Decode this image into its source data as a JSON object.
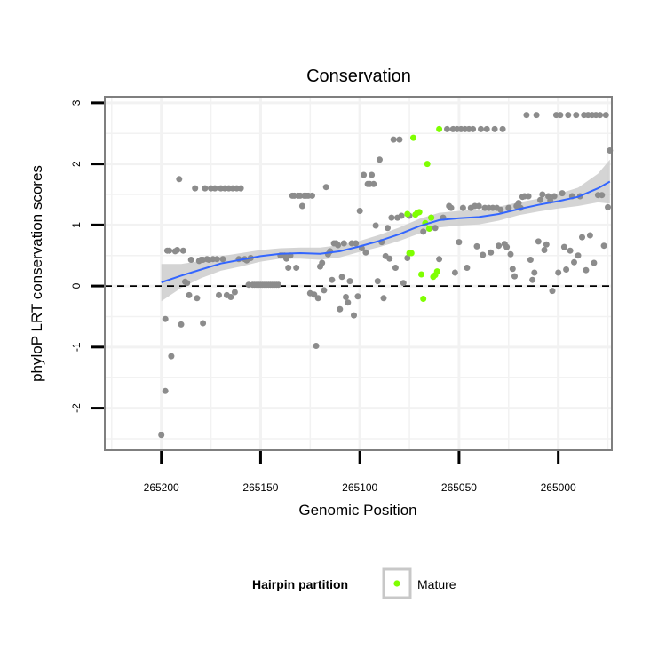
{
  "chart_data": {
    "type": "scatter",
    "title": "Conservation",
    "xlabel": "Genomic Position",
    "ylabel": "phyloP LRT conservation scores",
    "x_reversed": true,
    "xlim": [
      265228.5,
      264973
    ],
    "ylim": [
      -2.69,
      3.1
    ],
    "x_ticks": [
      265200,
      265150,
      265100,
      265050,
      265000
    ],
    "x_tick_labels": [
      "265200",
      "265150",
      "265100",
      "265050",
      "265000"
    ],
    "y_ticks": [
      -2,
      -1,
      0,
      1,
      2,
      3
    ],
    "y_tick_labels": [
      "-2",
      "-1",
      "0",
      "1",
      "2",
      "3"
    ],
    "grid": true,
    "reference_line": {
      "y": 0,
      "style": "dashed"
    },
    "legend": {
      "title": "Hairpin partition",
      "position": "bottom",
      "entries": [
        {
          "label": "Mature",
          "color": "#7fff00"
        }
      ]
    },
    "colors": {
      "points": "#8c8c8c",
      "mature": "#7fff00",
      "smooth": "#3366ff",
      "ribbon": "#cccccc",
      "panel_border": "#7f7f7f",
      "grid": "#f2f2f2"
    },
    "series": [
      {
        "role": "other",
        "points": [
          [
            265200,
            -2.44
          ],
          [
            265198,
            -1.72
          ],
          [
            265198,
            -0.54
          ],
          [
            265197,
            0.58
          ],
          [
            265196,
            0.58
          ],
          [
            265195,
            -1.15
          ],
          [
            265193,
            0.57
          ],
          [
            265192,
            0.59
          ],
          [
            265191,
            1.75
          ],
          [
            265190,
            -0.63
          ],
          [
            265189,
            0.58
          ],
          [
            265188,
            0.07
          ],
          [
            265187,
            0.05
          ],
          [
            265186,
            -0.15
          ],
          [
            265185,
            0.43
          ],
          [
            265183,
            1.6
          ],
          [
            265182,
            -0.2
          ],
          [
            265181,
            0.41
          ],
          [
            265180,
            0.43
          ],
          [
            265179,
            -0.61
          ],
          [
            265179,
            0.43
          ],
          [
            265178,
            1.6
          ],
          [
            265177,
            0.44
          ],
          [
            265176,
            0.43
          ],
          [
            265175,
            1.6
          ],
          [
            265174,
            0.44
          ],
          [
            265173,
            1.6
          ],
          [
            265172,
            0.44
          ],
          [
            265171,
            -0.15
          ],
          [
            265170,
            1.6
          ],
          [
            265169,
            0.44
          ],
          [
            265168,
            1.6
          ],
          [
            265167,
            -0.15
          ],
          [
            265166,
            1.6
          ],
          [
            265165,
            -0.18
          ],
          [
            265164,
            1.6
          ],
          [
            265163,
            -0.1
          ],
          [
            265162,
            1.6
          ],
          [
            265161,
            0.44
          ],
          [
            265160,
            1.6
          ],
          [
            265158,
            0.44
          ],
          [
            265157,
            0.42
          ],
          [
            265156,
            0.02
          ],
          [
            265155,
            0.46
          ],
          [
            265154,
            0.02
          ],
          [
            265153,
            0.02
          ],
          [
            265152,
            0.02
          ],
          [
            265151,
            0.02
          ],
          [
            265150,
            0.02
          ],
          [
            265149,
            0.02
          ],
          [
            265148,
            0.02
          ],
          [
            265147,
            0.02
          ],
          [
            265146,
            0.02
          ],
          [
            265145,
            0.02
          ],
          [
            265144,
            0.02
          ],
          [
            265143,
            0.02
          ],
          [
            265142,
            0.02
          ],
          [
            265141,
            0.02
          ],
          [
            265140,
            0.5
          ],
          [
            265139,
            0.5
          ],
          [
            265138,
            0.5
          ],
          [
            265137,
            0.45
          ],
          [
            265136,
            0.3
          ],
          [
            265135,
            0.5
          ],
          [
            265134,
            1.48
          ],
          [
            265133,
            1.48
          ],
          [
            265132,
            0.3
          ],
          [
            265131,
            1.48
          ],
          [
            265130,
            1.48
          ],
          [
            265129,
            1.31
          ],
          [
            265128,
            1.48
          ],
          [
            265127,
            1.48
          ],
          [
            265126,
            1.48
          ],
          [
            265125,
            -0.12
          ],
          [
            265124,
            1.48
          ],
          [
            265123,
            -0.14
          ],
          [
            265122,
            -0.98
          ],
          [
            265121,
            -0.2
          ],
          [
            265120,
            0.32
          ],
          [
            265119,
            0.38
          ],
          [
            265118,
            -0.07
          ],
          [
            265117,
            1.62
          ],
          [
            265116,
            0.52
          ],
          [
            265115,
            0.57
          ],
          [
            265114,
            0.1
          ],
          [
            265113,
            0.7
          ],
          [
            265112,
            0.7
          ],
          [
            265111,
            0.67
          ],
          [
            265110,
            -0.38
          ],
          [
            265109,
            0.15
          ],
          [
            265108,
            0.7
          ],
          [
            265107,
            -0.18
          ],
          [
            265106,
            -0.27
          ],
          [
            265105,
            0.08
          ],
          [
            265104,
            0.7
          ],
          [
            265103,
            -0.48
          ],
          [
            265102,
            0.7
          ],
          [
            265101,
            -0.17
          ],
          [
            265100,
            1.23
          ],
          [
            265099,
            0.62
          ],
          [
            265098,
            1.82
          ],
          [
            265097,
            0.55
          ],
          [
            265096,
            1.67
          ],
          [
            265095,
            1.67
          ],
          [
            265094,
            1.82
          ],
          [
            265093,
            1.67
          ],
          [
            265092,
            0.99
          ],
          [
            265091,
            0.08
          ],
          [
            265090,
            2.07
          ],
          [
            265089,
            0.72
          ],
          [
            265088,
            -0.2
          ],
          [
            265087,
            0.49
          ],
          [
            265086,
            0.95
          ],
          [
            265085,
            0.45
          ],
          [
            265084,
            1.12
          ],
          [
            265083,
            2.4
          ],
          [
            265082,
            0.3
          ],
          [
            265081,
            1.12
          ],
          [
            265080,
            2.4
          ],
          [
            265079,
            1.15
          ],
          [
            265078,
            0.05
          ],
          [
            265076,
            0.46
          ],
          [
            265075,
            1.15
          ],
          [
            265068,
            0.89
          ],
          [
            265064,
            1.12
          ],
          [
            265062,
            0.95
          ],
          [
            265060,
            0.44
          ],
          [
            265058,
            1.12
          ],
          [
            265056,
            2.57
          ],
          [
            265055,
            1.31
          ],
          [
            265054,
            1.28
          ],
          [
            265053,
            2.57
          ],
          [
            265052,
            0.22
          ],
          [
            265051,
            2.57
          ],
          [
            265050,
            0.72
          ],
          [
            265049,
            2.57
          ],
          [
            265048,
            1.28
          ],
          [
            265047,
            2.57
          ],
          [
            265046,
            0.3
          ],
          [
            265045,
            2.57
          ],
          [
            265044,
            1.28
          ],
          [
            265043,
            2.57
          ],
          [
            265042,
            1.31
          ],
          [
            265041,
            0.65
          ],
          [
            265040,
            1.31
          ],
          [
            265039,
            2.57
          ],
          [
            265038,
            0.51
          ],
          [
            265037,
            1.28
          ],
          [
            265036,
            2.57
          ],
          [
            265035,
            1.28
          ],
          [
            265034,
            0.55
          ],
          [
            265033,
            1.28
          ],
          [
            265032,
            2.57
          ],
          [
            265031,
            1.28
          ],
          [
            265030,
            0.66
          ],
          [
            265029,
            1.25
          ],
          [
            265028,
            2.57
          ],
          [
            265027,
            0.69
          ],
          [
            265026,
            0.64
          ],
          [
            265025,
            1.28
          ],
          [
            265024,
            0.52
          ],
          [
            265023,
            0.28
          ],
          [
            265022,
            0.16
          ],
          [
            265021,
            1.31
          ],
          [
            265020,
            1.36
          ],
          [
            265019,
            1.28
          ],
          [
            265018,
            1.46
          ],
          [
            265017,
            1.47
          ],
          [
            265016,
            2.8
          ],
          [
            265015,
            1.47
          ],
          [
            265014,
            0.43
          ],
          [
            265013,
            0.1
          ],
          [
            265012,
            0.22
          ],
          [
            265011,
            2.8
          ],
          [
            265010,
            0.73
          ],
          [
            265009,
            1.41
          ],
          [
            265008,
            1.5
          ],
          [
            265007,
            0.59
          ],
          [
            265006,
            0.68
          ],
          [
            265005,
            1.47
          ],
          [
            265004,
            1.4
          ],
          [
            265003,
            -0.08
          ],
          [
            265002,
            1.47
          ],
          [
            265001,
            2.8
          ],
          [
            265000,
            0.22
          ],
          [
            264999,
            2.8
          ],
          [
            264998,
            1.52
          ],
          [
            264997,
            0.64
          ],
          [
            264996,
            0.27
          ],
          [
            264995,
            2.8
          ],
          [
            264994,
            0.58
          ],
          [
            264993,
            1.47
          ],
          [
            264992,
            0.39
          ],
          [
            264991,
            2.8
          ],
          [
            264990,
            0.5
          ],
          [
            264989,
            1.47
          ],
          [
            264988,
            0.8
          ],
          [
            264987,
            2.8
          ],
          [
            264986,
            0.26
          ],
          [
            264985,
            2.8
          ],
          [
            264984,
            0.83
          ],
          [
            264983,
            2.8
          ],
          [
            264982,
            0.38
          ],
          [
            264981,
            2.8
          ],
          [
            264980,
            1.49
          ],
          [
            264979,
            2.8
          ],
          [
            264978,
            1.49
          ],
          [
            264977,
            0.66
          ],
          [
            264976,
            2.8
          ],
          [
            264975,
            1.29
          ],
          [
            264974,
            2.22
          ]
        ]
      },
      {
        "name": "Mature",
        "points": [
          [
            265076,
            1.18
          ],
          [
            265075,
            0.54
          ],
          [
            265074,
            0.54
          ],
          [
            265073,
            2.43
          ],
          [
            265072,
            1.17
          ],
          [
            265071,
            1.2
          ],
          [
            265070,
            1.21
          ],
          [
            265069,
            0.19
          ],
          [
            265068,
            -0.21
          ],
          [
            265067,
            1.03
          ],
          [
            265066,
            2.0
          ],
          [
            265065,
            0.94
          ],
          [
            265064,
            1.12
          ],
          [
            265063,
            0.15
          ],
          [
            265062,
            0.18
          ],
          [
            265061,
            0.24
          ],
          [
            265060,
            2.57
          ]
        ]
      }
    ],
    "smooth": {
      "x": [
        265200,
        265190,
        265180,
        265170,
        265160,
        265150,
        265140,
        265130,
        265120,
        265110,
        265100,
        265090,
        265080,
        265070,
        265060,
        265050,
        265040,
        265030,
        265020,
        265010,
        265000,
        264990,
        264980,
        264974
      ],
      "y": [
        0.06,
        0.17,
        0.27,
        0.37,
        0.43,
        0.49,
        0.53,
        0.54,
        0.53,
        0.57,
        0.65,
        0.74,
        0.85,
        0.98,
        1.08,
        1.11,
        1.13,
        1.18,
        1.26,
        1.33,
        1.39,
        1.46,
        1.6,
        1.71
      ],
      "lower": [
        -0.25,
        -0.03,
        0.13,
        0.25,
        0.32,
        0.4,
        0.45,
        0.45,
        0.43,
        0.47,
        0.56,
        0.64,
        0.74,
        0.86,
        0.96,
        0.99,
        1.01,
        1.07,
        1.16,
        1.22,
        1.27,
        1.31,
        1.37,
        1.35
      ],
      "upper": [
        0.36,
        0.36,
        0.41,
        0.49,
        0.54,
        0.59,
        0.62,
        0.63,
        0.63,
        0.67,
        0.74,
        0.84,
        0.96,
        1.1,
        1.2,
        1.23,
        1.25,
        1.3,
        1.37,
        1.43,
        1.51,
        1.61,
        1.84,
        2.07
      ]
    }
  }
}
